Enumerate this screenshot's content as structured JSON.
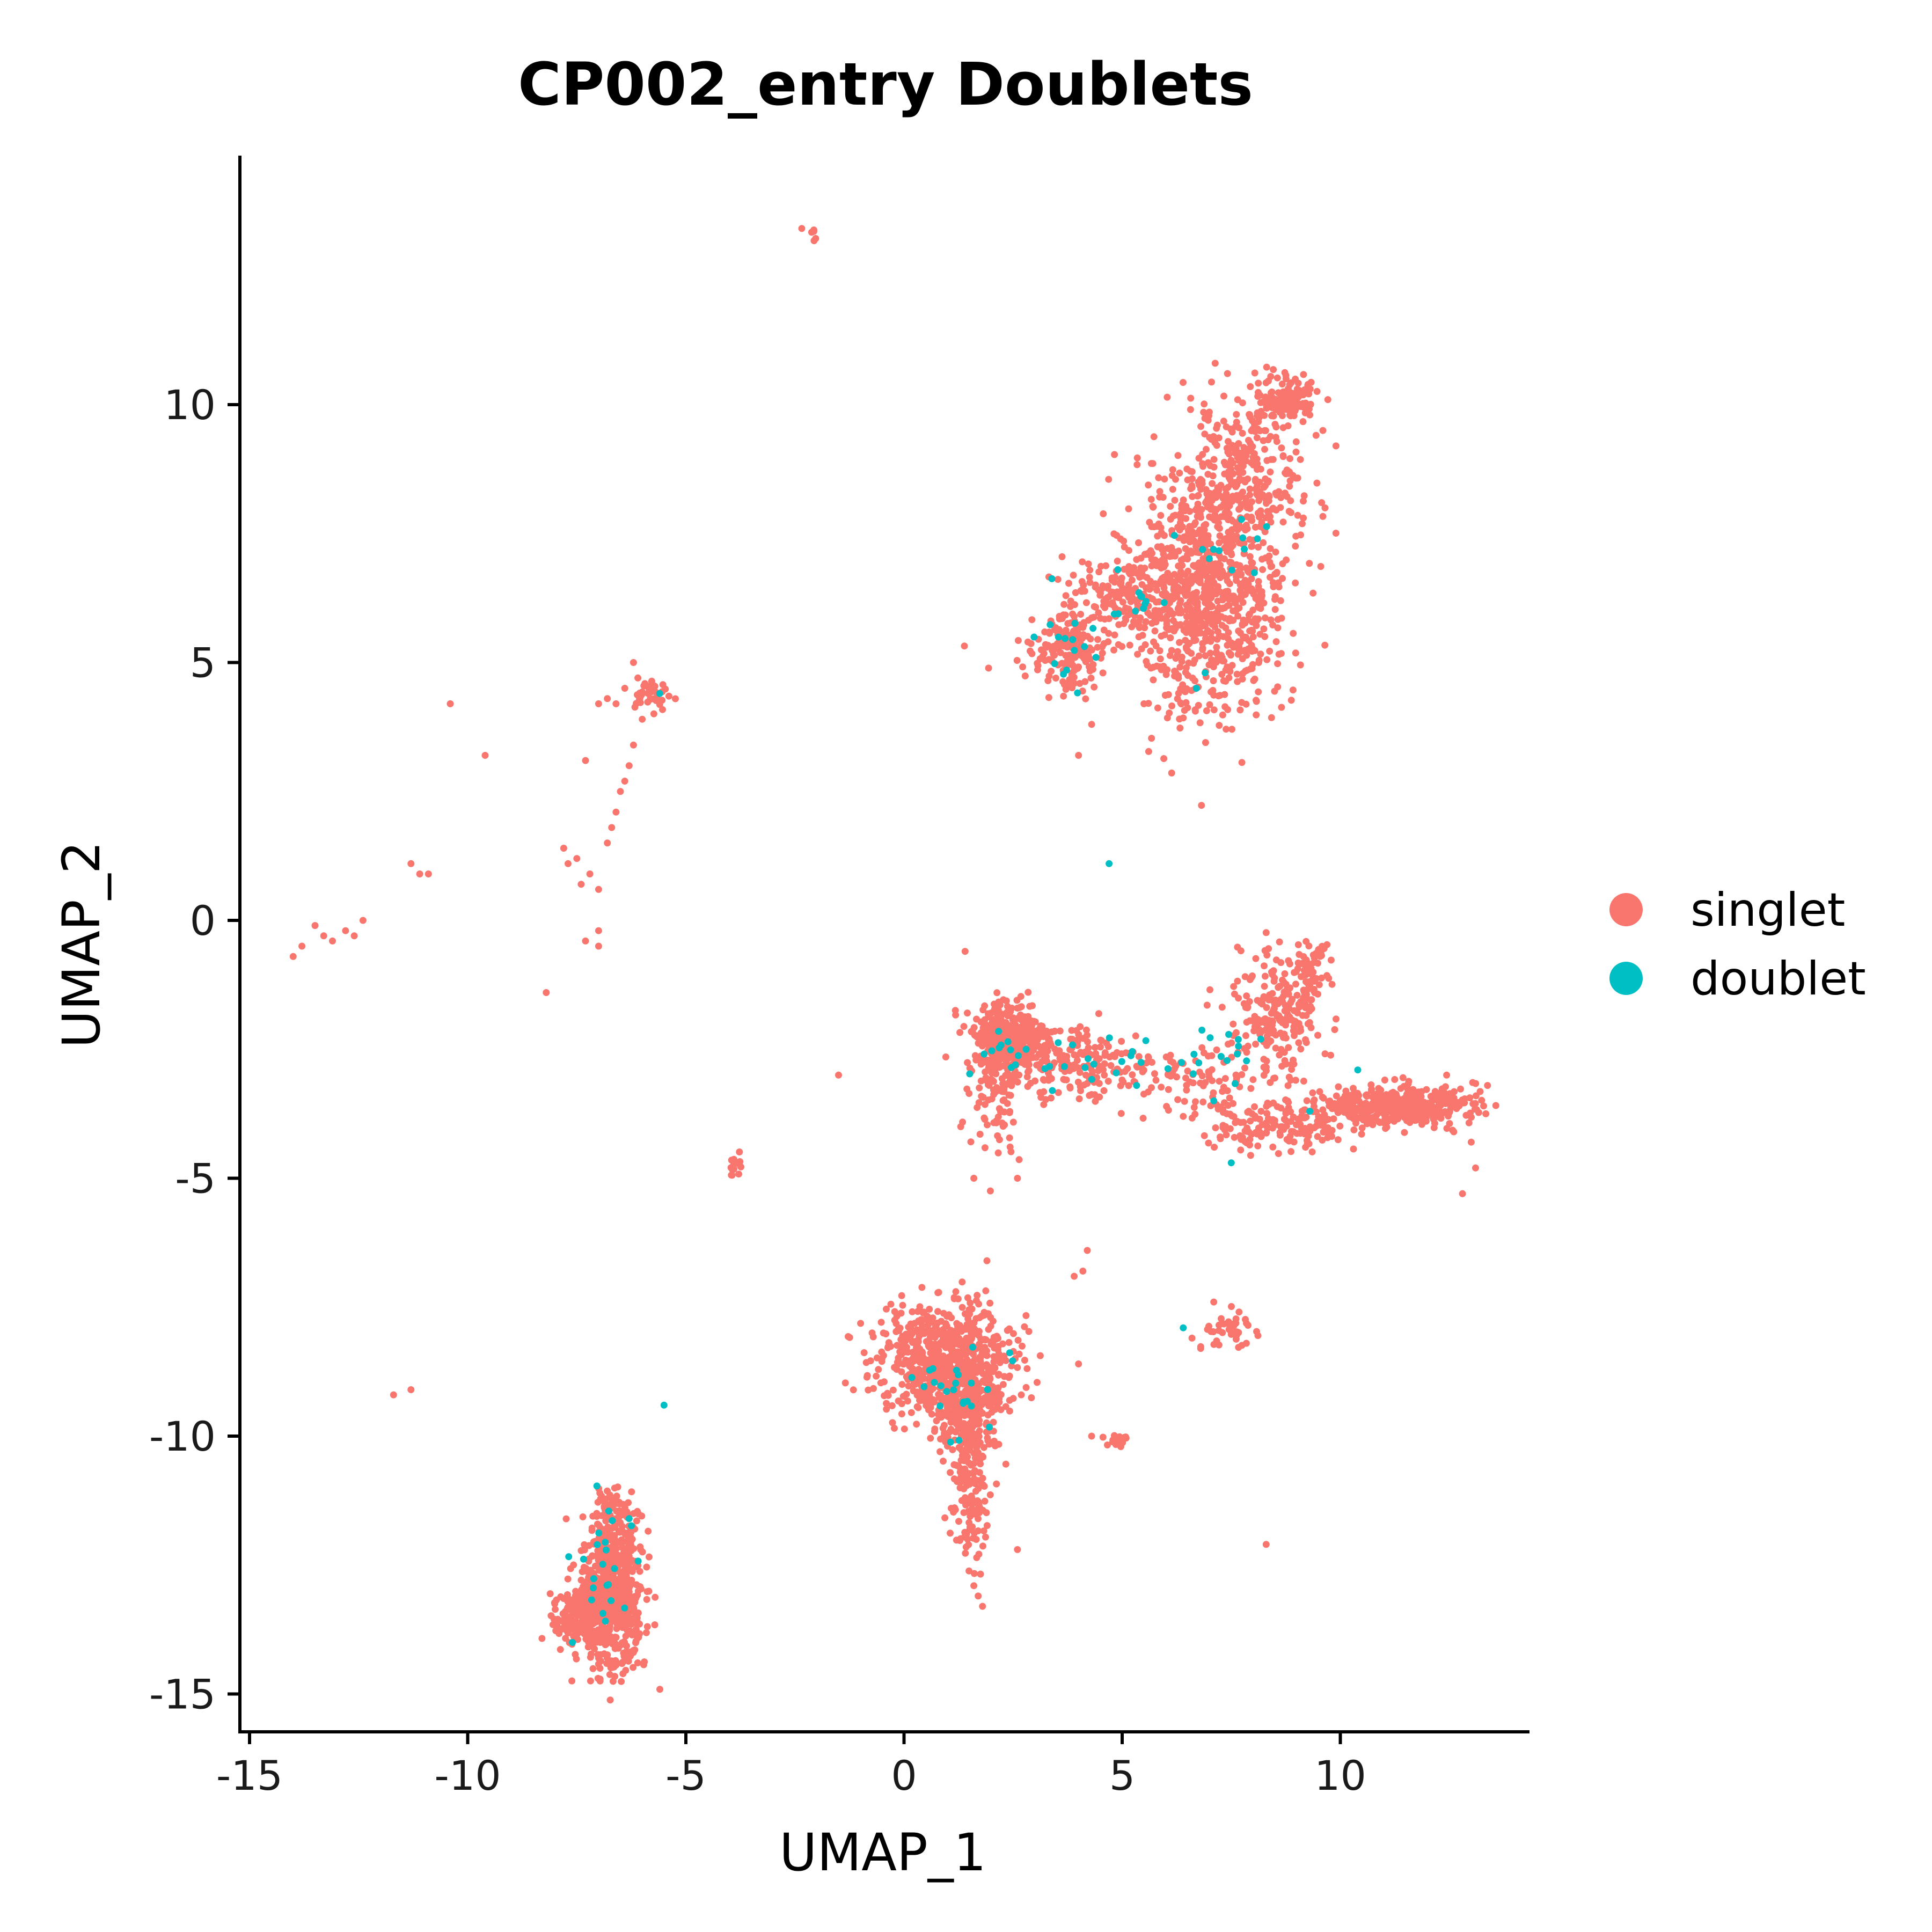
{
  "chart_data": {
    "type": "scatter",
    "title": "CP002_entry Doublets",
    "xlabel": "UMAP_1",
    "ylabel": "UMAP_2",
    "xlim": [
      -15.2,
      14.4
    ],
    "ylim": [
      -15.6,
      14.9
    ],
    "x_ticks": [
      -15,
      -10,
      -5,
      0,
      5,
      10
    ],
    "y_ticks": [
      -15,
      -10,
      -5,
      0,
      5,
      10
    ],
    "x_tick_labels": [
      "-15",
      "-10",
      "-5",
      "0",
      "5",
      "10"
    ],
    "y_tick_labels": [
      "-15",
      "-10",
      "-5",
      "0",
      "5",
      "10"
    ],
    "grid": false,
    "legend_position": "right",
    "series": [
      {
        "name": "singlet",
        "color": "#F8766D",
        "clusters": [
          {
            "cx": 7.0,
            "cy": 6.5,
            "sx": 0.9,
            "sy": 1.3,
            "n": 900
          },
          {
            "cx": 7.9,
            "cy": 8.6,
            "sx": 0.6,
            "sy": 0.9,
            "n": 260
          },
          {
            "cx": 8.8,
            "cy": 10.1,
            "sx": 0.35,
            "sy": 0.2,
            "n": 120
          },
          {
            "cx": 5.3,
            "cy": 6.3,
            "sx": 1.0,
            "sy": 0.35,
            "n": 200
          },
          {
            "cx": 3.8,
            "cy": 5.2,
            "sx": 0.45,
            "sy": 0.35,
            "n": 180
          },
          {
            "cx": 2.4,
            "cy": -2.3,
            "sx": 0.45,
            "sy": 0.35,
            "n": 380
          },
          {
            "cx": 2.1,
            "cy": -3.3,
            "sx": 0.25,
            "sy": 0.6,
            "n": 90
          },
          {
            "cx": 4.0,
            "cy": -2.8,
            "sx": 0.9,
            "sy": 0.35,
            "n": 200
          },
          {
            "cx": 6.8,
            "cy": -3.1,
            "sx": 1.0,
            "sy": 0.3,
            "n": 100
          },
          {
            "cx": 8.6,
            "cy": -1.7,
            "sx": 0.5,
            "sy": 0.6,
            "n": 230
          },
          {
            "cx": 9.3,
            "cy": -0.9,
            "sx": 0.15,
            "sy": 0.35,
            "n": 50
          },
          {
            "cx": 11.3,
            "cy": -3.6,
            "sx": 0.9,
            "sy": 0.2,
            "n": 400
          },
          {
            "cx": 8.6,
            "cy": -4.0,
            "sx": 0.8,
            "sy": 0.2,
            "n": 150
          },
          {
            "cx": 1.0,
            "cy": -8.5,
            "sx": 0.8,
            "sy": 0.5,
            "n": 700
          },
          {
            "cx": 1.4,
            "cy": -9.5,
            "sx": 0.4,
            "sy": 0.5,
            "n": 220
          },
          {
            "cx": 1.5,
            "cy": -11.0,
            "sx": 0.2,
            "sy": 0.7,
            "n": 160
          },
          {
            "cx": -6.7,
            "cy": -13.2,
            "sx": 0.35,
            "sy": 0.65,
            "n": 650
          },
          {
            "cx": -7.5,
            "cy": -13.5,
            "sx": 0.3,
            "sy": 0.25,
            "n": 140
          },
          {
            "cx": -6.6,
            "cy": -11.7,
            "sx": 0.25,
            "sy": 0.35,
            "n": 120
          },
          {
            "cx": -5.8,
            "cy": 4.4,
            "sx": 0.2,
            "sy": 0.15,
            "n": 40
          },
          {
            "cx": 7.5,
            "cy": -7.9,
            "sx": 0.35,
            "sy": 0.2,
            "n": 40
          },
          {
            "cx": 4.9,
            "cy": -10.1,
            "sx": 0.2,
            "sy": 0.06,
            "n": 20
          },
          {
            "cx": -3.9,
            "cy": -4.8,
            "sx": 0.1,
            "sy": 0.1,
            "n": 15
          },
          {
            "cx": -2.1,
            "cy": 13.3,
            "sx": 0.1,
            "sy": 0.08,
            "n": 6
          }
        ],
        "points": [
          [
            -14.0,
            -0.7
          ],
          [
            -13.8,
            -0.5
          ],
          [
            -13.5,
            -0.1
          ],
          [
            -13.3,
            -0.3
          ],
          [
            -13.1,
            -0.4
          ],
          [
            -12.8,
            -0.2
          ],
          [
            -12.6,
            -0.3
          ],
          [
            -12.4,
            0.0
          ],
          [
            -11.3,
            1.1
          ],
          [
            -11.1,
            0.9
          ],
          [
            -10.9,
            0.9
          ],
          [
            -10.4,
            4.2
          ],
          [
            -9.6,
            3.2
          ],
          [
            -8.2,
            -1.4
          ],
          [
            -7.8,
            1.4
          ],
          [
            -7.7,
            1.1
          ],
          [
            -7.5,
            1.2
          ],
          [
            -7.4,
            0.7
          ],
          [
            -7.3,
            -0.4
          ],
          [
            -7.3,
            3.1
          ],
          [
            -7.2,
            0.9
          ],
          [
            -7.0,
            -0.5
          ],
          [
            -7.0,
            0.6
          ],
          [
            -7.0,
            -0.2
          ],
          [
            -6.8,
            1.5
          ],
          [
            -6.7,
            1.8
          ],
          [
            -6.6,
            2.1
          ],
          [
            -6.5,
            2.5
          ],
          [
            -6.4,
            2.7
          ],
          [
            -6.3,
            3.0
          ],
          [
            -6.2,
            3.4
          ],
          [
            -6.1,
            4.7
          ],
          [
            -6.6,
            4.2
          ],
          [
            -6.8,
            4.3
          ],
          [
            -7.0,
            4.2
          ],
          [
            -6.4,
            4.5
          ],
          [
            -6.2,
            5.0
          ],
          [
            -6.0,
            3.9
          ],
          [
            -11.7,
            -9.2
          ],
          [
            -11.3,
            -9.1
          ],
          [
            -1.5,
            -3.0
          ],
          [
            1.4,
            -0.6
          ],
          [
            1.3,
            -4.0
          ],
          [
            1.6,
            -5.0
          ],
          [
            2.6,
            -5.0
          ],
          [
            1.9,
            -6.6
          ],
          [
            2.6,
            -12.2
          ],
          [
            1.6,
            -12.9
          ],
          [
            1.7,
            -13.1
          ],
          [
            1.8,
            -13.3
          ],
          [
            4.2,
            -6.4
          ],
          [
            4.1,
            -6.8
          ],
          [
            3.9,
            -6.9
          ],
          [
            4.0,
            -8.6
          ],
          [
            4.3,
            -10.0
          ],
          [
            8.3,
            -12.1
          ],
          [
            4.0,
            3.2
          ],
          [
            4.3,
            3.8
          ],
          [
            5.5,
            4.2
          ],
          [
            13.0,
            -4.3
          ],
          [
            13.1,
            -4.8
          ],
          [
            12.8,
            -5.3
          ],
          [
            12.6,
            -4.1
          ],
          [
            9.9,
            9.2
          ],
          [
            9.6,
            9.5
          ],
          [
            9.3,
            9.8
          ],
          [
            7.9,
            -3.7
          ],
          [
            6.4,
            -3.8
          ],
          [
            7.1,
            -7.4
          ],
          [
            6.6,
            -8.1
          ],
          [
            6.8,
            -8.3
          ]
        ]
      },
      {
        "name": "doublet",
        "color": "#00BFC4",
        "clusters": [
          {
            "cx": 3.7,
            "cy": 5.4,
            "sx": 0.35,
            "sy": 0.45,
            "n": 14
          },
          {
            "cx": 5.6,
            "cy": 6.2,
            "sx": 0.6,
            "sy": 0.4,
            "n": 10
          },
          {
            "cx": 7.1,
            "cy": 7.0,
            "sx": 0.5,
            "sy": 0.6,
            "n": 10
          },
          {
            "cx": 2.6,
            "cy": -2.6,
            "sx": 0.5,
            "sy": 0.3,
            "n": 14
          },
          {
            "cx": 5.0,
            "cy": -2.8,
            "sx": 1.0,
            "sy": 0.3,
            "n": 16
          },
          {
            "cx": 7.2,
            "cy": -2.6,
            "sx": 0.5,
            "sy": 0.3,
            "n": 14
          },
          {
            "cx": 1.2,
            "cy": -9.0,
            "sx": 0.5,
            "sy": 0.5,
            "n": 24
          },
          {
            "cx": -6.8,
            "cy": -12.5,
            "sx": 0.35,
            "sy": 0.8,
            "n": 22
          }
        ],
        "points": [
          [
            4.7,
            1.1
          ],
          [
            -5.5,
            -9.4
          ],
          [
            7.5,
            -4.7
          ],
          [
            6.4,
            -7.9
          ],
          [
            6.9,
            4.8
          ],
          [
            6.7,
            4.5
          ],
          [
            9.3,
            -3.7
          ],
          [
            10.4,
            -2.9
          ],
          [
            7.8,
            7.2
          ],
          [
            8.1,
            7.4
          ],
          [
            7.1,
            -3.5
          ],
          [
            4.9,
            6.8
          ],
          [
            4.4,
            5.1
          ],
          [
            3.4,
            -3.3
          ],
          [
            2.8,
            -2.5
          ],
          [
            -7.6,
            -14.0
          ],
          [
            -6.3,
            -11.6
          ],
          [
            -5.6,
            4.4
          ]
        ]
      }
    ]
  }
}
